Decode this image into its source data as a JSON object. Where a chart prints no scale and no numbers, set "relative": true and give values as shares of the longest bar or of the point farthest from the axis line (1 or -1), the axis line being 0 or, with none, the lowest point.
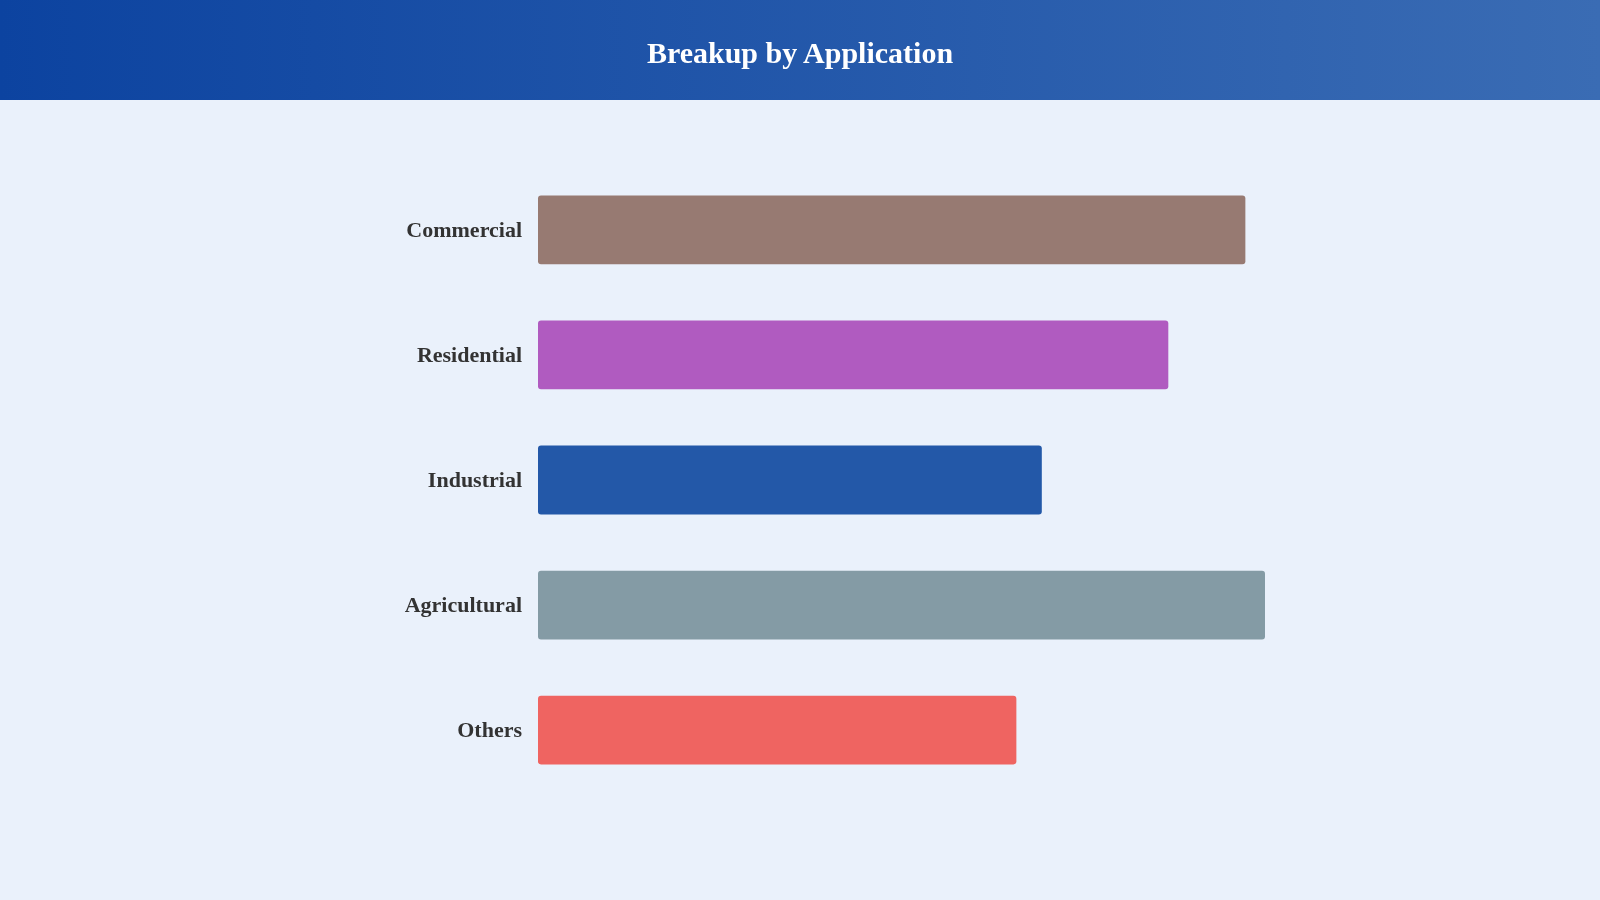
{
  "chart_data": {
    "type": "bar",
    "title": "Breakup by Application",
    "orientation": "horizontal",
    "relative": true,
    "categories": [
      "Commercial",
      "Residential",
      "Industrial",
      "Agricultural",
      "Others"
    ],
    "values": [
      0.973,
      0.867,
      0.693,
      1,
      0.658
    ],
    "colors": [
      "#977a72",
      "#b05bc0",
      "#2358a8",
      "#849ba5",
      "#ef6461"
    ]
  }
}
